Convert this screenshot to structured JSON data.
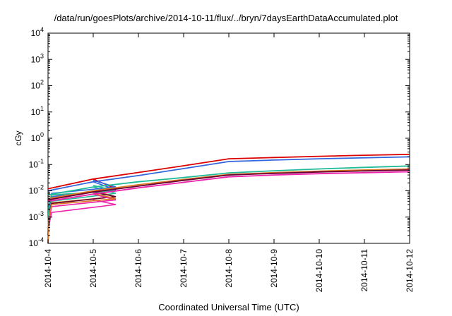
{
  "chart_data": {
    "type": "line",
    "title": "/data/run/goesPlots/archive/2014-10-11/flux/../bryn/7daysEarthDataAccumulated.plot",
    "xlabel": "Coordinated Universal Time (UTC)",
    "ylabel": "cGy",
    "x_ticks": [
      "2014-10-4",
      "2014-10-5",
      "2014-10-6",
      "2014-10-7",
      "2014-10-8",
      "2014-10-9",
      "2014-10-10",
      "2014-10-11",
      "2014-10-12"
    ],
    "y_scale": "log",
    "ylim": [
      0.0001,
      10000
    ],
    "y_ticks": [
      {
        "base": "10",
        "exp": "-4",
        "value": 0.0001
      },
      {
        "base": "10",
        "exp": "-3",
        "value": 0.001
      },
      {
        "base": "10",
        "exp": "-2",
        "value": 0.01
      },
      {
        "base": "10",
        "exp": "-1",
        "value": 0.1
      },
      {
        "base": "10",
        "exp": "0",
        "value": 1
      },
      {
        "base": "10",
        "exp": "1",
        "value": 10
      },
      {
        "base": "10",
        "exp": "2",
        "value": 100
      },
      {
        "base": "10",
        "exp": "3",
        "value": 1000
      },
      {
        "base": "10",
        "exp": "4",
        "value": 10000
      }
    ],
    "grid": false,
    "legend": "none",
    "series": [
      {
        "color": "#dd0000",
        "points": [
          [
            "2014-10-4",
            0.012
          ],
          [
            "2014-10-5",
            0.028
          ],
          [
            "2014-10-6",
            0.05
          ],
          [
            "2014-10-7",
            0.09
          ],
          [
            "2014-10-8",
            0.165
          ],
          [
            "2014-10-9",
            0.185
          ],
          [
            "2014-10-10",
            0.205
          ],
          [
            "2014-10-11",
            0.225
          ],
          [
            "2014-10-12",
            0.245
          ]
        ]
      },
      {
        "color": "#3366dd",
        "points": [
          [
            "2014-10-4",
            0.01
          ],
          [
            "2014-10-5",
            0.022
          ],
          [
            "2014-10-6",
            0.038
          ],
          [
            "2014-10-7",
            0.07
          ],
          [
            "2014-10-8",
            0.13
          ],
          [
            "2014-10-9",
            0.148
          ],
          [
            "2014-10-10",
            0.165
          ],
          [
            "2014-10-11",
            0.18
          ],
          [
            "2014-10-12",
            0.195
          ]
        ]
      },
      {
        "color": "#22bb99",
        "points": [
          [
            "2014-10-4",
            0.007
          ],
          [
            "2014-10-5",
            0.014
          ],
          [
            "2014-10-6",
            0.022
          ],
          [
            "2014-10-7",
            0.032
          ],
          [
            "2014-10-8",
            0.048
          ],
          [
            "2014-10-9",
            0.058
          ],
          [
            "2014-10-10",
            0.068
          ],
          [
            "2014-10-11",
            0.078
          ],
          [
            "2014-10-12",
            0.088
          ]
        ]
      },
      {
        "color": "#dd7722",
        "points": [
          [
            "2014-10-4",
            0.005
          ],
          [
            "2014-10-5",
            0.01
          ],
          [
            "2014-10-6",
            0.017
          ],
          [
            "2014-10-7",
            0.027
          ],
          [
            "2014-10-8",
            0.042
          ],
          [
            "2014-10-9",
            0.049
          ],
          [
            "2014-10-10",
            0.056
          ],
          [
            "2014-10-11",
            0.062
          ],
          [
            "2014-10-12",
            0.068
          ]
        ]
      },
      {
        "color": "#660033",
        "points": [
          [
            "2014-10-4",
            0.0045
          ],
          [
            "2014-10-5",
            0.009
          ],
          [
            "2014-10-6",
            0.015
          ],
          [
            "2014-10-7",
            0.025
          ],
          [
            "2014-10-8",
            0.04
          ],
          [
            "2014-10-9",
            0.046
          ],
          [
            "2014-10-10",
            0.052
          ],
          [
            "2014-10-11",
            0.057
          ],
          [
            "2014-10-12",
            0.062
          ]
        ]
      },
      {
        "color": "#ee22aa",
        "points": [
          [
            "2014-10-4",
            0.004
          ],
          [
            "2014-10-5",
            0.0075
          ],
          [
            "2014-10-6",
            0.013
          ],
          [
            "2014-10-7",
            0.021
          ],
          [
            "2014-10-8",
            0.034
          ],
          [
            "2014-10-9",
            0.04
          ],
          [
            "2014-10-10",
            0.045
          ],
          [
            "2014-10-11",
            0.049
          ],
          [
            "2014-10-12",
            0.053
          ]
        ]
      }
    ],
    "startup_curves": [
      {
        "color": "#dd0000",
        "points": [
          [
            "2014-10-4",
            0.0002
          ],
          [
            "2014-10-4",
            0.002
          ],
          [
            "2014-10-4",
            0.006
          ],
          [
            "2014-10-5",
            0.012
          ],
          [
            "2014-10-5",
            0.028
          ]
        ]
      },
      {
        "color": "#3366dd",
        "points": [
          [
            "2014-10-4",
            0.00015
          ],
          [
            "2014-10-4",
            0.002
          ],
          [
            "2014-10-4",
            0.006
          ],
          [
            "2014-10-5",
            0.011
          ],
          [
            "2014-10-5",
            0.022
          ]
        ]
      },
      {
        "color": "#22bb99",
        "points": [
          [
            "2014-10-4",
            0.0002
          ],
          [
            "2014-10-4",
            0.0015
          ],
          [
            "2014-10-4",
            0.004
          ],
          [
            "2014-10-5",
            0.008
          ],
          [
            "2014-10-5",
            0.014
          ]
        ]
      },
      {
        "color": "#dd7722",
        "points": [
          [
            "2014-10-4",
            0.00015
          ],
          [
            "2014-10-4",
            0.0012
          ],
          [
            "2014-10-4",
            0.0035
          ],
          [
            "2014-10-5",
            0.006
          ],
          [
            "2014-10-5",
            0.01
          ]
        ]
      },
      {
        "color": "#660033",
        "points": [
          [
            "2014-10-4",
            0.0002
          ],
          [
            "2014-10-4",
            0.0013
          ],
          [
            "2014-10-4",
            0.0033
          ],
          [
            "2014-10-5",
            0.006
          ],
          [
            "2014-10-5",
            0.009
          ]
        ]
      },
      {
        "color": "#ee22aa",
        "points": [
          [
            "2014-10-4",
            0.0001
          ],
          [
            "2014-10-4",
            0.0008
          ],
          [
            "2014-10-4",
            0.0025
          ],
          [
            "2014-10-5",
            0.0045
          ],
          [
            "2014-10-5",
            0.0075
          ]
        ]
      },
      {
        "color": "#ee22aa",
        "points": [
          [
            "2014-10-4",
            0.0001
          ],
          [
            "2014-10-4",
            0.0005
          ],
          [
            "2014-10-4",
            0.0015
          ],
          [
            "2014-10-5",
            0.003
          ],
          [
            "2014-10-5",
            0.0045
          ]
        ]
      },
      {
        "color": "#3366dd",
        "points": [
          [
            "2014-10-4",
            0.0003
          ],
          [
            "2014-10-4",
            0.0025
          ],
          [
            "2014-10-4",
            0.008
          ],
          [
            "2014-10-5",
            0.014
          ],
          [
            "2014-10-5",
            0.025
          ]
        ]
      },
      {
        "color": "#22bb99",
        "points": [
          [
            "2014-10-4",
            0.0003
          ],
          [
            "2014-10-4",
            0.003
          ],
          [
            "2014-10-4",
            0.007
          ],
          [
            "2014-10-5",
            0.01
          ],
          [
            "2014-10-5",
            0.016
          ]
        ]
      },
      {
        "color": "#dd7722",
        "points": [
          [
            "2014-10-4",
            0.0001
          ],
          [
            "2014-10-4",
            0.001
          ],
          [
            "2014-10-4",
            0.003
          ],
          [
            "2014-10-5",
            0.005
          ],
          [
            "2014-10-5",
            0.008
          ]
        ]
      }
    ]
  }
}
